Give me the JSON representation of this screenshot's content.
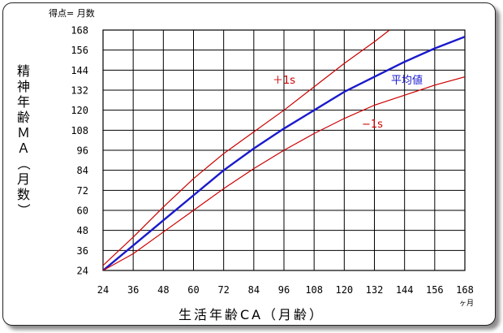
{
  "chart_data": {
    "type": "line",
    "corner_note": "得点= 月数",
    "xlabel": "生活年齢CA（月齢）",
    "x_unit": "ヶ月",
    "ylabel": "精神年齢ＭＡ（月数）",
    "xlim": [
      24,
      168
    ],
    "ylim": [
      24,
      168
    ],
    "x_ticks": [
      24,
      36,
      48,
      60,
      72,
      84,
      96,
      108,
      120,
      132,
      144,
      156,
      168
    ],
    "y_ticks": [
      24,
      36,
      48,
      60,
      72,
      84,
      96,
      108,
      120,
      132,
      144,
      156,
      168
    ],
    "grid": true,
    "series": [
      {
        "name": "＋1s",
        "color": "#cc0000",
        "x": [
          24,
          36,
          48,
          60,
          72,
          84,
          96,
          108,
          120,
          132,
          138
        ],
        "y": [
          27,
          44,
          62,
          79,
          94,
          107,
          120,
          134,
          148,
          161,
          168
        ]
      },
      {
        "name": "平均値",
        "color": "#1a1acc",
        "x": [
          24,
          36,
          48,
          60,
          72,
          84,
          96,
          108,
          120,
          132,
          144,
          156,
          168
        ],
        "y": [
          24,
          39,
          54,
          69,
          84,
          97,
          109,
          120,
          131,
          140,
          149,
          157,
          164
        ]
      },
      {
        "name": "−1s",
        "color": "#cc0000",
        "x": [
          24,
          36,
          48,
          60,
          72,
          84,
          96,
          108,
          120,
          132,
          144,
          156,
          168
        ],
        "y": [
          24,
          34,
          47,
          60,
          73,
          85,
          96,
          106,
          115,
          123,
          129,
          135,
          140
        ]
      }
    ]
  }
}
